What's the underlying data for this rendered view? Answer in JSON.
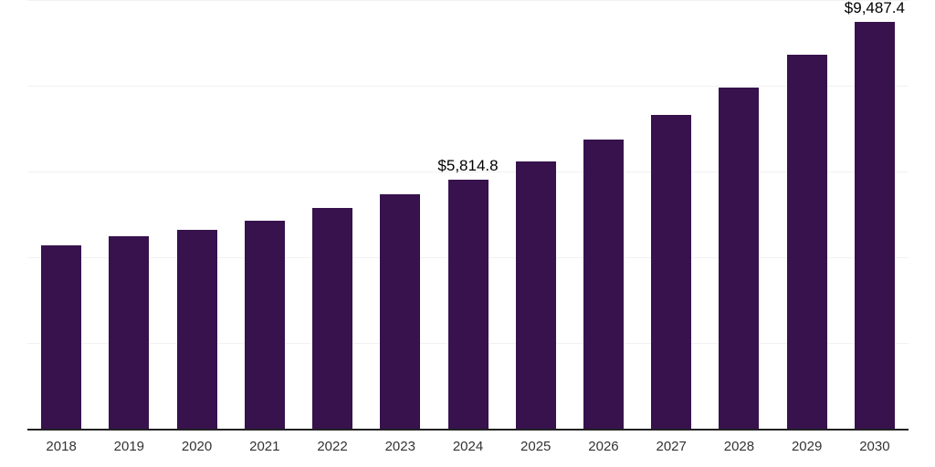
{
  "chart": {
    "background_color": "#ffffff",
    "bar_color": "#37124d",
    "axis_line_color": "#222222",
    "gridline_color": "#f2f2f2",
    "x_label_color": "#333333",
    "annotation_color": "#000000"
  },
  "chart_data": {
    "type": "bar",
    "title": "",
    "xlabel": "",
    "ylabel": "",
    "categories": [
      "2018",
      "2019",
      "2020",
      "2021",
      "2022",
      "2023",
      "2024",
      "2025",
      "2026",
      "2027",
      "2028",
      "2029",
      "2030"
    ],
    "values": [
      4280,
      4490,
      4640,
      4850,
      5150,
      5470,
      5814.8,
      6230,
      6740,
      7320,
      7960,
      8720,
      9487.4
    ],
    "labeled_points": [
      {
        "category": "2024",
        "label": "$5,814.8",
        "value": 5814.8
      },
      {
        "category": "2030",
        "label": "$9,487.4",
        "value": 9487.4
      }
    ],
    "ylim": [
      0,
      10000
    ],
    "gridline_values": [
      0,
      2000,
      4000,
      6000,
      8000,
      10000
    ],
    "grid": true,
    "legend": false,
    "y_axis_labels_visible": false
  }
}
